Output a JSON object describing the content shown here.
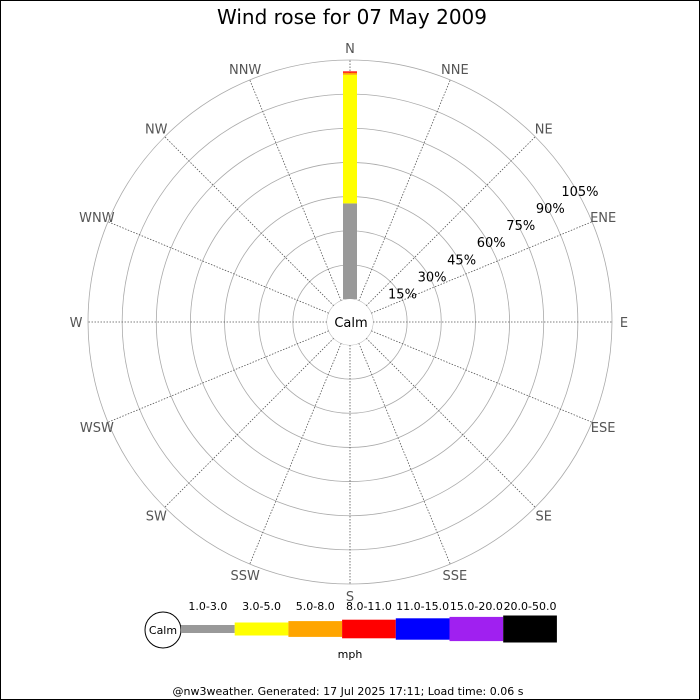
{
  "chart_data": {
    "type": "wind-rose",
    "title": "Wind rose for 07 May 2009",
    "directions": [
      "N",
      "NNE",
      "NE",
      "ENE",
      "E",
      "ESE",
      "SE",
      "SSE",
      "S",
      "SSW",
      "SW",
      "WSW",
      "W",
      "WNW",
      "NW",
      "NNW"
    ],
    "radial_labels": [
      "15%",
      "30%",
      "45%",
      "60%",
      "75%",
      "90%",
      "105%"
    ],
    "radial_ticks": [
      15,
      30,
      45,
      60,
      75,
      90,
      105
    ],
    "radial_max": 105,
    "grid": true,
    "calm_label": "Calm",
    "unit": "mph",
    "speed_bins": [
      {
        "label": "1.0-3.0",
        "color": "#999999"
      },
      {
        "label": "3.0-5.0",
        "color": "#ffff00"
      },
      {
        "label": "5.0-8.0",
        "color": "#ffa500"
      },
      {
        "label": "8.0-11.0",
        "color": "#ff0000"
      },
      {
        "label": "11.0-15.0",
        "color": "#0000ff"
      },
      {
        "label": "15.0-20.0",
        "color": "#a020f0"
      },
      {
        "label": "20.0-50.0",
        "color": "#000000"
      }
    ],
    "series": [
      {
        "direction": "N",
        "segments": [
          {
            "bin": "1.0-3.0",
            "start": 0,
            "end": 42
          },
          {
            "bin": "3.0-5.0",
            "start": 42,
            "end": 98.5
          },
          {
            "bin": "5.0-8.0",
            "start": 98.5,
            "end": 99.4
          },
          {
            "bin": "8.0-11.0",
            "start": 99.4,
            "end": 100
          }
        ]
      }
    ]
  },
  "footer": "@nw3weather.  Generated: 17 Jul 2025 17:11; Load time: 0.06 s"
}
